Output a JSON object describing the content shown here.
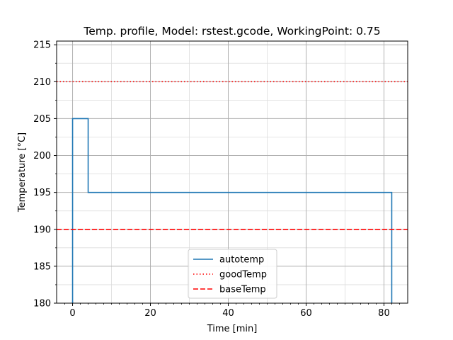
{
  "chart_data": {
    "type": "line",
    "title": "Temp. profile, Model: rstest.gcode, WorkingPoint: 0.75",
    "xlabel": "Time [min]",
    "ylabel": "Temperature [°C]",
    "xlim": [
      -4.1,
      86.1
    ],
    "ylim": [
      180,
      215.5
    ],
    "xticks": [
      0,
      20,
      40,
      60,
      80
    ],
    "xtick_labels": [
      "0",
      "20",
      "40",
      "60",
      "80"
    ],
    "x_minor_ticks": [
      -2,
      2,
      4,
      6,
      8,
      10,
      12,
      14,
      16,
      18,
      22,
      24,
      26,
      28,
      30,
      32,
      34,
      36,
      38,
      42,
      44,
      46,
      48,
      50,
      52,
      54,
      56,
      58,
      62,
      64,
      66,
      68,
      70,
      72,
      74,
      76,
      78,
      82,
      84
    ],
    "x_minor_gridlines": [
      10,
      30,
      50,
      70
    ],
    "yticks": [
      180,
      185,
      190,
      195,
      200,
      205,
      210,
      215
    ],
    "ytick_labels": [
      "180",
      "185",
      "190",
      "195",
      "200",
      "205",
      "210",
      "215"
    ],
    "y_minor_gridlines": [
      182.5,
      187.5,
      192.5,
      197.5,
      202.5,
      207.5,
      212.5
    ],
    "grid": true,
    "legend_position": "lower center",
    "series": [
      {
        "name": "autotemp",
        "color": "#1f77b4",
        "style": "solid",
        "x": [
          0,
          0,
          4,
          4,
          82,
          82
        ],
        "y": [
          180,
          205,
          205,
          195,
          195,
          180
        ]
      },
      {
        "name": "goodTemp",
        "color": "#ff0000",
        "style": "dotted",
        "hline": 210
      },
      {
        "name": "baseTemp",
        "color": "#ff0000",
        "style": "dashed",
        "hline": 190
      }
    ]
  }
}
